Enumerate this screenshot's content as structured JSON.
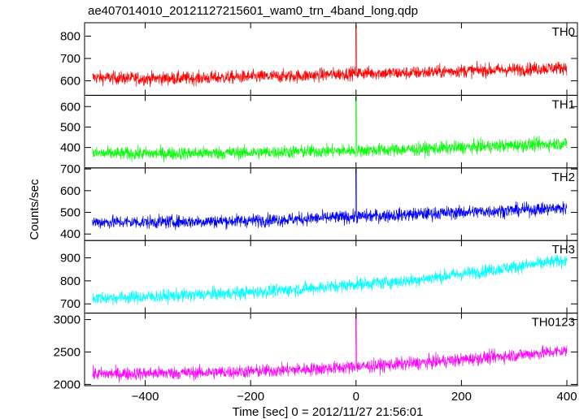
{
  "chart_data": {
    "type": "line",
    "title": "ae407014010_20121127215601_wam0_trn_4band_long.qdp",
    "xlabel": "Time [sec] 0 = 2012/11/27 21:56:01",
    "ylabel": "Counts/sec",
    "xlim": [
      -515,
      420
    ],
    "x_ticks": [
      -400,
      -200,
      0,
      200,
      400
    ],
    "x_tick_labels": [
      "−400",
      "−200",
      "0",
      "200",
      "400"
    ],
    "grid": false,
    "panels": [
      {
        "label": "TH0",
        "color": "#ff0000",
        "ylim": [
          535,
          860
        ],
        "y_ticks": [
          600,
          700,
          800
        ],
        "y_tick_labels": [
          "600",
          "700",
          "800"
        ],
        "series": {
          "x": [
            -500,
            -400,
            -300,
            -200,
            -100,
            0,
            100,
            200,
            300,
            400
          ],
          "y": [
            615,
            610,
            612,
            618,
            622,
            635,
            635,
            645,
            650,
            660
          ]
        },
        "spike": {
          "x": 0,
          "y": 850
        }
      },
      {
        "label": "TH1",
        "color": "#00ff00",
        "ylim": [
          300,
          655
        ],
        "y_ticks": [
          400,
          500,
          600
        ],
        "y_tick_labels": [
          "400",
          "500",
          "600"
        ],
        "series": {
          "x": [
            -500,
            -400,
            -300,
            -200,
            -100,
            0,
            100,
            200,
            300,
            400
          ],
          "y": [
            370,
            370,
            372,
            375,
            380,
            385,
            390,
            400,
            410,
            420
          ]
        },
        "spike": {
          "x": 0,
          "y": 650
        }
      },
      {
        "label": "TH2",
        "color": "#0000ff",
        "ylim": [
          370,
          705
        ],
        "y_ticks": [
          400,
          500,
          600,
          700
        ],
        "y_tick_labels": [
          "400",
          "500",
          "600",
          "700"
        ],
        "series": {
          "x": [
            -500,
            -400,
            -300,
            -200,
            -100,
            0,
            100,
            200,
            300,
            400
          ],
          "y": [
            455,
            455,
            458,
            462,
            470,
            480,
            490,
            500,
            510,
            520
          ]
        },
        "spike": {
          "x": 0,
          "y": 700
        }
      },
      {
        "label": "TH3",
        "color": "#00ffff",
        "ylim": [
          660,
          975
        ],
        "y_ticks": [
          700,
          800,
          900
        ],
        "y_tick_labels": [
          "700",
          "800",
          "900"
        ],
        "series": {
          "x": [
            -500,
            -400,
            -300,
            -200,
            -100,
            0,
            100,
            200,
            300,
            400
          ],
          "y": [
            725,
            730,
            740,
            750,
            765,
            785,
            800,
            830,
            860,
            890
          ]
        },
        "spike": null
      },
      {
        "label": "TH0123",
        "color": "#ff00ff",
        "ylim": [
          1980,
          3100
        ],
        "y_ticks": [
          2000,
          2500,
          3000
        ],
        "y_tick_labels": [
          "2000",
          "2500",
          "3000"
        ],
        "series": {
          "x": [
            -500,
            -400,
            -300,
            -200,
            -100,
            0,
            100,
            200,
            300,
            400
          ],
          "y": [
            2160,
            2170,
            2180,
            2200,
            2230,
            2270,
            2320,
            2380,
            2450,
            2520
          ]
        },
        "spike": {
          "x": 0,
          "y": 3100
        }
      }
    ]
  }
}
